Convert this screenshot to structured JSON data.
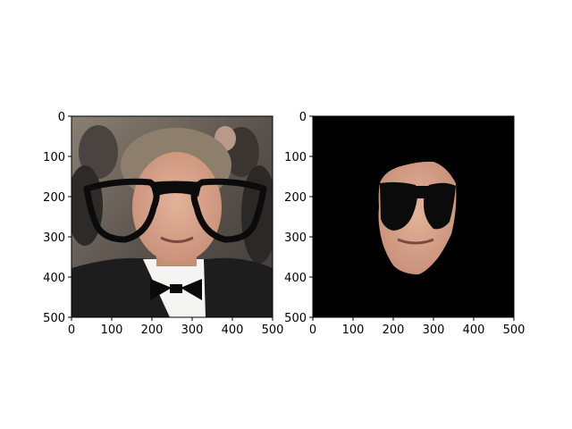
{
  "chart_data": [
    {
      "type": "image",
      "description_id": "left",
      "content": "photo",
      "title": "",
      "xlabel": "",
      "ylabel": "",
      "xlim": [
        0,
        500
      ],
      "ylim": [
        500,
        0
      ],
      "xticks": [
        0,
        100,
        200,
        300,
        400,
        500
      ],
      "yticks": [
        0,
        100,
        200,
        300,
        400,
        500
      ],
      "xtick_labels": [
        "0",
        "100",
        "200",
        "300",
        "400",
        "500"
      ],
      "ytick_labels": [
        "0",
        "100",
        "200",
        "300",
        "400",
        "500"
      ],
      "grid": false
    },
    {
      "type": "image",
      "description_id": "right",
      "content": "masked-face",
      "title": "",
      "xlabel": "",
      "ylabel": "",
      "xlim": [
        0,
        500
      ],
      "ylim": [
        500,
        0
      ],
      "xticks": [
        0,
        100,
        200,
        300,
        400,
        500
      ],
      "yticks": [
        0,
        100,
        200,
        300,
        400,
        500
      ],
      "xtick_labels": [
        "0",
        "100",
        "200",
        "300",
        "400",
        "500"
      ],
      "ytick_labels": [
        "0",
        "100",
        "200",
        "300",
        "400",
        "500"
      ],
      "background_color": "#000000",
      "grid": false
    }
  ],
  "colors": {
    "glasses": "#0b0b0b",
    "skin": "#d8a58c",
    "suit": "#1d1d1d",
    "shirt": "#f4f4f2",
    "hair": "#8e7f6c",
    "crowd_bg": "#6b625a"
  }
}
